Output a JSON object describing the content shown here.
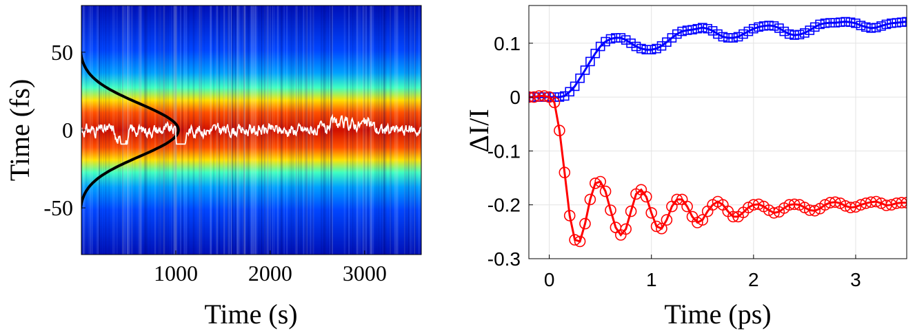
{
  "chart_data": [
    {
      "type": "heatmap",
      "title": "",
      "xlabel": "Time (s)",
      "ylabel": "Time (fs)",
      "xlim": [
        0,
        3600
      ],
      "ylim": [
        -80,
        80
      ],
      "xticks": [
        1000,
        2000,
        3000
      ],
      "xtick_labels": [
        "1000",
        "2000",
        "3000"
      ],
      "yticks": [
        50,
        0,
        -50
      ],
      "ytick_labels": [
        "50",
        "0",
        "-50"
      ],
      "colormap": "jet",
      "pulse_width_fwhm_fs": 40,
      "overlays": [
        {
          "name": "pulse-envelope",
          "color": "#000000",
          "description_peak_x_s": 1050,
          "center_fs": 0
        },
        {
          "name": "centroid-trace",
          "color": "#ffffff",
          "center_fs": 0,
          "range_fs": [
            -8,
            8
          ]
        }
      ],
      "bright_band_fwhm_fs": [
        -25,
        25
      ]
    },
    {
      "type": "line",
      "title": "",
      "xlabel": "Time (ps)",
      "ylabel": "ΔI/I",
      "xlim": [
        -0.2,
        3.5
      ],
      "ylim": [
        -0.3,
        0.17
      ],
      "xticks": [
        0,
        1,
        2,
        3
      ],
      "xtick_labels": [
        "0",
        "1",
        "2",
        "3"
      ],
      "yticks": [
        0.1,
        0,
        -0.1,
        -0.2,
        -0.3
      ],
      "ytick_labels": [
        "0.1",
        "0",
        "-0.1",
        "-0.2",
        "-0.3"
      ],
      "grid": true,
      "series": [
        {
          "name": "blue-squares",
          "color": "#0000ff",
          "marker": "square",
          "x": [
            -0.2,
            -0.15,
            -0.1,
            -0.05,
            0,
            0.05,
            0.1,
            0.15,
            0.2,
            0.25,
            0.3,
            0.35,
            0.4,
            0.45,
            0.5,
            0.55,
            0.6,
            0.65,
            0.7,
            0.75,
            0.8,
            0.85,
            0.9,
            0.95,
            1.0,
            1.05,
            1.1,
            1.15,
            1.2,
            1.25,
            1.3,
            1.35,
            1.4,
            1.45,
            1.5,
            1.55,
            1.6,
            1.65,
            1.7,
            1.75,
            1.8,
            1.85,
            1.9,
            1.95,
            2.0,
            2.05,
            2.1,
            2.15,
            2.2,
            2.25,
            2.3,
            2.35,
            2.4,
            2.45,
            2.5,
            2.55,
            2.6,
            2.65,
            2.7,
            2.75,
            2.8,
            2.85,
            2.9,
            2.95,
            3.0,
            3.05,
            3.1,
            3.15,
            3.2,
            3.25,
            3.3,
            3.35,
            3.4,
            3.45,
            3.5
          ],
          "values": [
            0.0,
            0.0,
            0.0,
            0.0,
            0.0,
            0.0,
            0.0,
            0.002,
            0.01,
            0.02,
            0.035,
            0.05,
            0.066,
            0.081,
            0.094,
            0.103,
            0.108,
            0.11,
            0.11,
            0.106,
            0.1,
            0.094,
            0.09,
            0.088,
            0.088,
            0.09,
            0.095,
            0.102,
            0.11,
            0.117,
            0.122,
            0.124,
            0.125,
            0.127,
            0.129,
            0.127,
            0.123,
            0.117,
            0.112,
            0.11,
            0.11,
            0.112,
            0.117,
            0.122,
            0.127,
            0.13,
            0.132,
            0.133,
            0.132,
            0.128,
            0.122,
            0.117,
            0.115,
            0.116,
            0.119,
            0.124,
            0.13,
            0.135,
            0.137,
            0.138,
            0.138,
            0.139,
            0.14,
            0.139,
            0.137,
            0.133,
            0.13,
            0.128,
            0.129,
            0.132,
            0.135,
            0.137,
            0.138,
            0.139,
            0.14
          ]
        },
        {
          "name": "red-circles",
          "color": "#ff0000",
          "marker": "circle",
          "x": [
            -0.2,
            -0.15,
            -0.1,
            -0.05,
            0,
            0.05,
            0.1,
            0.15,
            0.2,
            0.25,
            0.3,
            0.35,
            0.4,
            0.45,
            0.5,
            0.55,
            0.6,
            0.65,
            0.7,
            0.75,
            0.8,
            0.85,
            0.9,
            0.95,
            1.0,
            1.05,
            1.1,
            1.15,
            1.2,
            1.25,
            1.3,
            1.35,
            1.4,
            1.45,
            1.5,
            1.55,
            1.6,
            1.65,
            1.7,
            1.75,
            1.8,
            1.85,
            1.9,
            1.95,
            2.0,
            2.05,
            2.1,
            2.15,
            2.2,
            2.25,
            2.3,
            2.35,
            2.4,
            2.45,
            2.5,
            2.55,
            2.6,
            2.65,
            2.7,
            2.75,
            2.8,
            2.85,
            2.9,
            2.95,
            3.0,
            3.05,
            3.1,
            3.15,
            3.2,
            3.25,
            3.3,
            3.35,
            3.4,
            3.45,
            3.5
          ],
          "values": [
            0.0,
            0.0,
            0.002,
            0.002,
            0.0,
            -0.01,
            -0.062,
            -0.14,
            -0.22,
            -0.265,
            -0.268,
            -0.235,
            -0.19,
            -0.16,
            -0.157,
            -0.175,
            -0.21,
            -0.242,
            -0.256,
            -0.245,
            -0.212,
            -0.18,
            -0.172,
            -0.185,
            -0.215,
            -0.24,
            -0.244,
            -0.228,
            -0.203,
            -0.19,
            -0.19,
            -0.203,
            -0.222,
            -0.233,
            -0.228,
            -0.212,
            -0.2,
            -0.194,
            -0.2,
            -0.212,
            -0.222,
            -0.222,
            -0.214,
            -0.205,
            -0.2,
            -0.199,
            -0.203,
            -0.21,
            -0.215,
            -0.213,
            -0.206,
            -0.2,
            -0.199,
            -0.2,
            -0.205,
            -0.21,
            -0.211,
            -0.207,
            -0.2,
            -0.196,
            -0.195,
            -0.197,
            -0.202,
            -0.205,
            -0.204,
            -0.2,
            -0.197,
            -0.195,
            -0.194,
            -0.197,
            -0.201,
            -0.2,
            -0.197,
            -0.196,
            -0.196
          ]
        }
      ]
    }
  ]
}
